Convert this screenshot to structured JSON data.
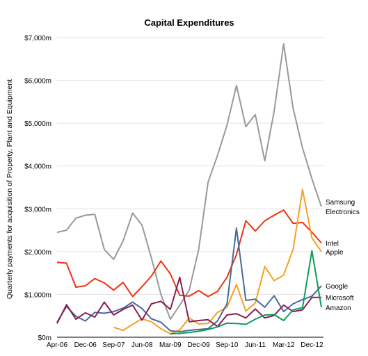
{
  "chart_data": {
    "type": "line",
    "title": "Capital Expenditures",
    "xlabel": "",
    "ylabel": "Quarterly payments for acquisition of Property, Plant and Equipment",
    "ylim": [
      0,
      7000
    ],
    "y_tick_values": [
      0,
      1000,
      2000,
      3000,
      4000,
      5000,
      6000,
      7000
    ],
    "y_tick_labels": [
      "$0m",
      "$1,000m",
      "$2,000m",
      "$3,000m",
      "$4,000m",
      "$5,000m",
      "$6,000m",
      "$7,000m"
    ],
    "x_tick_labels": [
      "Apr-06",
      "Dec-06",
      "Sep-07",
      "Jun-08",
      "Mar-09",
      "Dec-09",
      "Sep-10",
      "Jun-11",
      "Mar-12",
      "Dec-12"
    ],
    "x_tick_index": [
      0,
      3,
      6,
      9,
      12,
      15,
      18,
      21,
      24,
      27
    ],
    "grid": "horizontal",
    "legend": "inline labels at right end of lines",
    "series": [
      {
        "name": "Samsung Electronics",
        "label_lines": [
          "Samsung",
          "Electronics"
        ],
        "color": "#999999",
        "values": [
          2450,
          2500,
          2780,
          2850,
          2870,
          2050,
          1820,
          2250,
          2900,
          2620,
          1850,
          1000,
          420,
          750,
          1100,
          2050,
          3620,
          4250,
          4950,
          5880,
          4920,
          5200,
          4120,
          5280,
          6850,
          5350,
          4420,
          3700,
          3050
        ]
      },
      {
        "name": "Intel",
        "label_lines": [
          "Intel"
        ],
        "color": "#ee3311",
        "values": [
          1750,
          1730,
          1170,
          1200,
          1370,
          1270,
          1100,
          1280,
          950,
          1180,
          1430,
          1780,
          1480,
          980,
          960,
          1090,
          950,
          1070,
          1400,
          1930,
          2720,
          2480,
          2720,
          2850,
          2970,
          2660,
          2680,
          2450,
          2200
        ]
      },
      {
        "name": "Apple",
        "label_lines": [
          "Apple"
        ],
        "color": "#f5a020",
        "values": [
          null,
          null,
          null,
          null,
          null,
          null,
          230,
          160,
          300,
          430,
          360,
          200,
          80,
          170,
          450,
          310,
          320,
          580,
          700,
          1230,
          610,
          800,
          1650,
          1320,
          1450,
          2050,
          3450,
          2320,
          2000
        ]
      },
      {
        "name": "Google",
        "label_lines": [
          "Google"
        ],
        "color": "#446c9a",
        "values": [
          350,
          720,
          490,
          380,
          580,
          560,
          600,
          680,
          820,
          670,
          430,
          350,
          150,
          130,
          160,
          180,
          200,
          380,
          780,
          2550,
          860,
          890,
          700,
          970,
          600,
          780,
          880,
          960,
          1200
        ]
      },
      {
        "name": "Microsoft",
        "label_lines": [
          "Microsoft"
        ],
        "color": "#8a1c54",
        "values": [
          320,
          760,
          420,
          570,
          470,
          820,
          520,
          650,
          750,
          400,
          780,
          840,
          650,
          1400,
          360,
          390,
          410,
          250,
          520,
          550,
          450,
          660,
          450,
          510,
          750,
          600,
          640,
          930,
          930
        ]
      },
      {
        "name": "Amazon",
        "label_lines": [
          "Amazon"
        ],
        "color": "#119a5c",
        "values": [
          null,
          null,
          null,
          null,
          null,
          null,
          null,
          null,
          null,
          null,
          null,
          null,
          80,
          90,
          110,
          140,
          180,
          240,
          330,
          320,
          300,
          420,
          520,
          530,
          390,
          640,
          690,
          2020,
          700
        ]
      }
    ]
  }
}
